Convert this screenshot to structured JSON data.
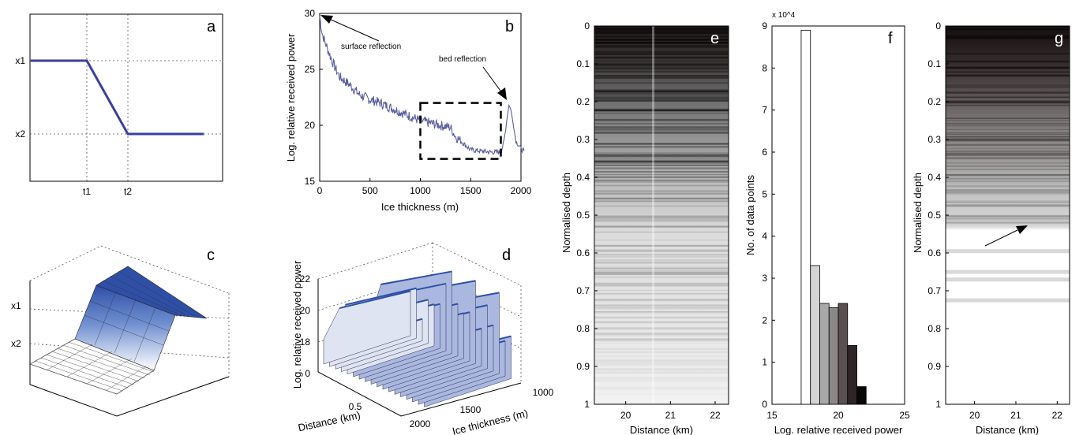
{
  "chart_data": [
    {
      "panel": "a",
      "type": "line",
      "x_ticks": [
        "t1",
        "t2"
      ],
      "y_ticks": [
        "x1",
        "x2"
      ],
      "series": [
        {
          "values": [
            [
              "start",
              "x1"
            ],
            [
              "t1",
              "x1"
            ],
            [
              "t2",
              "x2"
            ],
            [
              "end",
              "x2"
            ]
          ]
        }
      ],
      "grid": true,
      "color": "#3a3f9e"
    },
    {
      "panel": "b",
      "type": "line",
      "xlabel": "Ice thickness (m)",
      "ylabel": "Log. relative received power",
      "xlim": [
        0,
        2000
      ],
      "ylim": [
        15,
        30
      ],
      "x_ticks": [
        "0",
        "500",
        "1000",
        "1500",
        "2000"
      ],
      "y_ticks": [
        "15",
        "20",
        "25",
        "30"
      ],
      "x": [
        0,
        25,
        50,
        100,
        150,
        200,
        300,
        400,
        500,
        600,
        700,
        800,
        900,
        1000,
        1100,
        1200,
        1300,
        1350,
        1400,
        1500,
        1600,
        1700,
        1800,
        1830,
        1860,
        1880,
        1900,
        1950,
        2000,
        2030
      ],
      "values": [
        29.7,
        28.2,
        27.5,
        26.3,
        25.2,
        24.3,
        23.6,
        22.7,
        22.3,
        22.0,
        21.6,
        21.2,
        20.8,
        20.4,
        20.2,
        20.0,
        19.8,
        19.0,
        18.6,
        17.8,
        17.7,
        17.6,
        17.6,
        18.5,
        20.5,
        21.8,
        21.4,
        18.6,
        17.9,
        17.7
      ],
      "annotations": [
        {
          "text": "surface reflection",
          "x": 0,
          "y": 29.7
        },
        {
          "text": "bed reflection",
          "x": 1880,
          "y": 21.8
        }
      ],
      "dashed_box": {
        "x": [
          1000,
          1800
        ],
        "y": [
          17,
          22
        ]
      },
      "color": "#5a5f9e"
    },
    {
      "panel": "c",
      "type": "surface",
      "y_ticks": [
        "x1",
        "x2"
      ],
      "color": "#3a55a8"
    },
    {
      "panel": "d",
      "type": "surface",
      "zlabel": "Log. relative received power",
      "xlabel": "Distance (km)",
      "ylabel": "Ice thickness (m)",
      "z_ticks": [
        "18",
        "20",
        "22"
      ],
      "x_ticks": [
        "0",
        "0.5"
      ],
      "y_ticks": [
        "2000",
        "1500",
        "1000"
      ],
      "zlim": [
        17,
        22
      ],
      "color": "#3a55a8"
    },
    {
      "panel": "e",
      "type": "heatmap",
      "xlabel": "Distance (km)",
      "ylabel": "Normalised depth",
      "xlim": [
        19.3,
        22.3
      ],
      "ylim": [
        0,
        1
      ],
      "x_ticks": [
        "20",
        "21",
        "22"
      ],
      "y_ticks": [
        "0",
        "0.1",
        "0.2",
        "0.3",
        "0.4",
        "0.5",
        "0.6",
        "0.7",
        "0.8",
        "0.9",
        "1"
      ]
    },
    {
      "panel": "f",
      "type": "bar",
      "xlabel": "Log. relative received power",
      "ylabel": "No. of data points",
      "axis_multiplier": "x 10^4",
      "xlim": [
        15,
        25
      ],
      "ylim": [
        0,
        9
      ],
      "x_ticks": [
        "15",
        "20",
        "25"
      ],
      "y_ticks": [
        "0",
        "1",
        "2",
        "3",
        "4",
        "5",
        "6",
        "7",
        "8",
        "9"
      ],
      "bin_edges": [
        17.2,
        17.9,
        18.6,
        19.3,
        20.0,
        20.7,
        21.4,
        22.1
      ],
      "values": [
        8.9,
        3.3,
        2.4,
        2.3,
        2.4,
        1.4,
        0.42
      ],
      "colors": [
        "#ffffff",
        "#d4d4d4",
        "#a8a8a8",
        "#8c8888",
        "#5a5050",
        "#2e2626",
        "#080808"
      ]
    },
    {
      "panel": "g",
      "type": "heatmap",
      "xlabel": "Distance (km)",
      "ylabel": "Normalised depth",
      "xlim": [
        19.3,
        22.3
      ],
      "ylim": [
        0,
        1
      ],
      "x_ticks": [
        "20",
        "21",
        "22"
      ],
      "y_ticks": [
        "0",
        "0.1",
        "0.2",
        "0.3",
        "0.4",
        "0.5",
        "0.6",
        "0.7",
        "0.8",
        "0.9",
        "1"
      ]
    }
  ],
  "panel_labels": [
    "a",
    "b",
    "c",
    "d",
    "e",
    "f",
    "g"
  ],
  "tick_labels": {
    "d_z": [
      "22",
      "20",
      "18"
    ]
  }
}
